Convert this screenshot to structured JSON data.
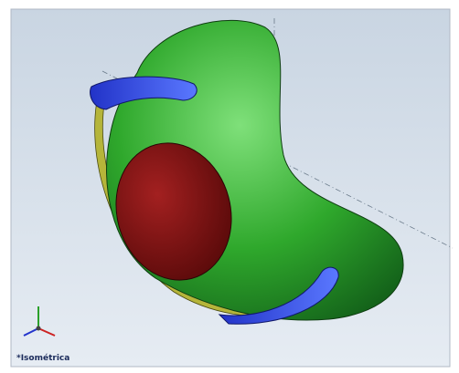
{
  "viewport": {
    "view_label": "*Isométrica"
  }
}
